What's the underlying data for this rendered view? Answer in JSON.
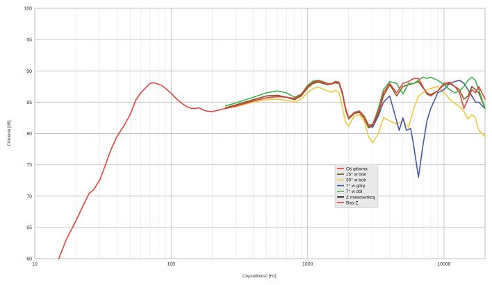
{
  "chart_data": {
    "type": "line",
    "title": "",
    "xlabel": "Częstotliwość [Hz]",
    "ylabel": "Ciśnienie [dB]",
    "xscale": "log",
    "xlim": [
      10,
      20000
    ],
    "ylim": [
      60,
      100
    ],
    "x_ticks": [
      10,
      100,
      1000,
      10000
    ],
    "x_tick_labels": [
      "10",
      "100",
      "1000",
      "10000"
    ],
    "y_ticks": [
      60,
      65,
      70,
      75,
      80,
      85,
      90,
      95,
      100
    ],
    "y_tick_labels": [
      "60",
      "65",
      "70",
      "75",
      "80",
      "85",
      "90",
      "95",
      "100"
    ],
    "grid": true,
    "legend_position": "lower-right-center",
    "series": [
      {
        "name": "Oś główna",
        "color": "#e8403c",
        "x": [
          250,
          300,
          400,
          500,
          600,
          700,
          800,
          900,
          1000,
          1100,
          1200,
          1300,
          1400,
          1500,
          1600,
          1700,
          1800,
          1900,
          2000,
          2200,
          2400,
          2600,
          2800,
          3000,
          3300,
          3600,
          4000,
          4500,
          5000,
          5500,
          6000,
          6500,
          7000,
          7500,
          8000,
          9000,
          10000,
          11000,
          12000,
          13000,
          14000,
          15000,
          16000,
          17000,
          18000,
          20000
        ],
        "y": [
          84.0,
          84.4,
          85.2,
          85.7,
          85.9,
          85.8,
          85.6,
          86.2,
          87.5,
          88.2,
          88.4,
          88.2,
          88.0,
          87.9,
          88.3,
          88.2,
          86.5,
          84.0,
          82.5,
          83.3,
          83.6,
          82.6,
          81.2,
          81.5,
          83.5,
          86.5,
          88.0,
          86.5,
          88.0,
          88.3,
          88.8,
          88.8,
          87.5,
          86.3,
          86.0,
          86.8,
          88.0,
          88.2,
          87.5,
          86.5,
          84.0,
          85.5,
          87.0,
          86.5,
          87.5,
          85.5
        ]
      },
      {
        "name": "15° w bok",
        "color": "#7a5a1e",
        "x": [
          250,
          300,
          400,
          500,
          600,
          700,
          800,
          900,
          1000,
          1100,
          1200,
          1300,
          1400,
          1500,
          1600,
          1700,
          1800,
          1900,
          2000,
          2200,
          2400,
          2600,
          2800,
          3000,
          3300,
          3600,
          4000,
          4500,
          5000,
          5500,
          6000,
          6500,
          7000,
          7500,
          8000,
          9000,
          10000,
          11000,
          12000,
          13000,
          14000,
          15000,
          16000,
          17000,
          18000,
          20000
        ],
        "y": [
          84.1,
          84.6,
          85.4,
          86.0,
          86.1,
          85.8,
          85.4,
          86.0,
          87.3,
          88.0,
          88.2,
          88.0,
          87.8,
          87.9,
          88.1,
          88.0,
          86.3,
          83.8,
          82.3,
          83.2,
          83.4,
          82.4,
          80.9,
          81.3,
          83.2,
          86.0,
          87.8,
          86.0,
          87.5,
          87.8,
          88.0,
          88.3,
          87.3,
          86.5,
          86.2,
          86.8,
          87.8,
          88.0,
          87.5,
          87.0,
          85.5,
          86.0,
          87.5,
          87.0,
          86.5,
          84.0
        ]
      },
      {
        "name": "30° w bok",
        "color": "#f2c83a",
        "x": [
          250,
          300,
          400,
          500,
          600,
          700,
          800,
          900,
          1000,
          1100,
          1200,
          1300,
          1400,
          1500,
          1600,
          1700,
          1800,
          1900,
          2000,
          2200,
          2400,
          2600,
          2800,
          3000,
          3300,
          3600,
          4000,
          4500,
          5000,
          5500,
          6000,
          6500,
          7000,
          7500,
          8000,
          9000,
          10000,
          11000,
          12000,
          13000,
          14000,
          15000,
          16000,
          17000,
          18000,
          20000
        ],
        "y": [
          84.0,
          84.3,
          85.0,
          85.4,
          85.5,
          85.3,
          85.0,
          85.5,
          86.5,
          87.2,
          87.4,
          87.1,
          86.8,
          86.6,
          86.9,
          86.5,
          84.2,
          81.8,
          81.2,
          82.8,
          83.0,
          82.0,
          79.5,
          78.5,
          80.0,
          82.5,
          82.0,
          81.5,
          82.0,
          81.0,
          84.0,
          86.0,
          86.5,
          87.0,
          87.2,
          87.5,
          86.5,
          85.5,
          84.8,
          84.3,
          83.5,
          82.3,
          83.0,
          82.5,
          80.5,
          79.5
        ]
      },
      {
        "name": "7° w górę",
        "color": "#4557a8",
        "x": [
          250,
          300,
          400,
          500,
          600,
          700,
          800,
          900,
          1000,
          1100,
          1200,
          1300,
          1400,
          1500,
          1600,
          1700,
          1800,
          1900,
          2000,
          2200,
          2400,
          2600,
          2800,
          3000,
          3300,
          3600,
          4000,
          4300,
          4700,
          5000,
          5300,
          5700,
          6000,
          6500,
          7000,
          7500,
          8000,
          9000,
          10000,
          11000,
          12000,
          13000,
          14000,
          15000,
          16000,
          17000,
          18000,
          20000
        ],
        "y": [
          84.0,
          84.4,
          85.2,
          85.7,
          85.9,
          85.8,
          85.6,
          86.2,
          87.5,
          88.2,
          88.4,
          88.2,
          88.0,
          87.9,
          88.3,
          88.2,
          86.5,
          84.0,
          82.5,
          83.3,
          83.6,
          82.6,
          81.2,
          81.0,
          82.8,
          85.0,
          86.0,
          83.5,
          80.5,
          82.5,
          80.5,
          80.8,
          78.0,
          73.0,
          78.0,
          82.0,
          84.0,
          86.5,
          87.0,
          88.0,
          88.3,
          88.5,
          88.0,
          87.0,
          86.0,
          85.0,
          85.0,
          84.0
        ]
      },
      {
        "name": "7° w dół",
        "color": "#3eb34a",
        "x": [
          250,
          300,
          400,
          500,
          600,
          700,
          800,
          900,
          1000,
          1100,
          1200,
          1300,
          1400,
          1500,
          1600,
          1700,
          1800,
          1900,
          2000,
          2200,
          2400,
          2600,
          2800,
          3000,
          3300,
          3600,
          4000,
          4500,
          5000,
          5500,
          6000,
          6500,
          7000,
          7500,
          8000,
          9000,
          10000,
          11000,
          12000,
          13000,
          14000,
          15000,
          16000,
          17000,
          18000,
          20000
        ],
        "y": [
          84.4,
          84.9,
          85.8,
          86.5,
          86.8,
          86.5,
          85.8,
          86.3,
          87.7,
          88.4,
          88.5,
          88.3,
          88.0,
          88.0,
          88.3,
          88.1,
          86.6,
          84.0,
          82.4,
          83.4,
          83.6,
          82.8,
          81.4,
          81.4,
          84.0,
          87.0,
          88.3,
          88.0,
          86.3,
          88.0,
          88.0,
          88.5,
          89.0,
          88.8,
          89.0,
          88.5,
          87.8,
          87.0,
          86.5,
          86.8,
          87.5,
          88.5,
          89.0,
          88.5,
          87.0,
          84.0
        ]
      },
      {
        "name": "Z maskownicą",
        "color": "#111111",
        "x": [],
        "y": []
      },
      {
        "name": "Bas-Z",
        "color": "#e8403c",
        "x": [
          15,
          17,
          20,
          23,
          25,
          27,
          30,
          33,
          36,
          40,
          45,
          50,
          55,
          60,
          65,
          70,
          75,
          80,
          85,
          90,
          100,
          110,
          120,
          130,
          140,
          150,
          160,
          170,
          180,
          200,
          220,
          250
        ],
        "y": [
          60.0,
          63.0,
          66.0,
          68.8,
          70.4,
          71.0,
          72.6,
          75.0,
          77.3,
          79.5,
          81.2,
          83.0,
          85.3,
          86.5,
          87.3,
          88.0,
          88.1,
          87.9,
          87.7,
          87.3,
          86.4,
          85.5,
          84.8,
          84.3,
          84.0,
          84.0,
          84.1,
          83.8,
          83.6,
          83.5,
          83.7,
          84.0
        ]
      }
    ]
  }
}
